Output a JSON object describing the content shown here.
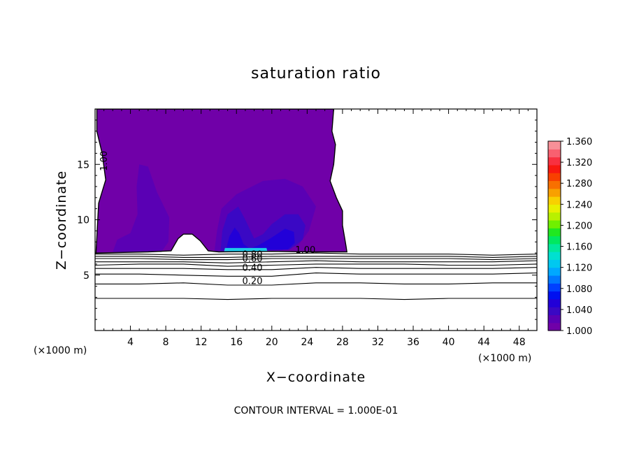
{
  "chart_data": {
    "type": "contour",
    "title": "saturation ratio",
    "xlabel": "X−coordinate",
    "ylabel": "Z−coordinate",
    "x_unit_left": "(×1000 m)",
    "x_unit_right": "(×1000 m)",
    "xlim": [
      0,
      50
    ],
    "ylim": [
      0,
      20
    ],
    "x_ticks": [
      4,
      8,
      12,
      16,
      20,
      24,
      28,
      32,
      36,
      40,
      44,
      48
    ],
    "y_ticks": [
      5,
      10,
      15
    ],
    "x_tick_labels": [
      "4",
      "8",
      "12",
      "16",
      "20",
      "24",
      "28",
      "32",
      "36",
      "40",
      "44",
      "48"
    ],
    "y_tick_labels": [
      "5",
      "10",
      "15"
    ],
    "contour_interval_text": "CONTOUR INTERVAL = 1.000E-01",
    "contour_labels": [
      {
        "text": "1.00",
        "x": 23.8,
        "z": 7.0
      },
      {
        "text": "1.00",
        "x": 0.4,
        "z": 14.4
      },
      {
        "text": "0.80",
        "x": 17.8,
        "z": 6.6
      },
      {
        "text": "0.60",
        "x": 17.8,
        "z": 6.2
      },
      {
        "text": "0.40",
        "x": 17.8,
        "z": 5.4
      },
      {
        "text": "0.20",
        "x": 17.8,
        "z": 4.2
      }
    ],
    "subsaturated_contours": [
      {
        "level": 0.1,
        "z": [
          2.9,
          2.9,
          2.9,
          2.8,
          2.9,
          2.9,
          2.9,
          2.8,
          2.9,
          2.9,
          2.9
        ]
      },
      {
        "level": 0.2,
        "z": [
          4.2,
          4.2,
          4.3,
          4.1,
          4.1,
          4.3,
          4.3,
          4.2,
          4.2,
          4.3,
          4.3
        ]
      },
      {
        "level": 0.3,
        "z": [
          5.1,
          5.1,
          5.0,
          4.9,
          4.9,
          5.2,
          5.1,
          5.1,
          5.1,
          5.1,
          5.2
        ]
      },
      {
        "level": 0.4,
        "z": [
          5.6,
          5.6,
          5.6,
          5.5,
          5.5,
          5.7,
          5.6,
          5.6,
          5.6,
          5.6,
          5.7
        ]
      },
      {
        "level": 0.5,
        "z": [
          5.9,
          6.0,
          6.0,
          5.8,
          5.9,
          6.0,
          6.0,
          6.0,
          5.9,
          5.9,
          6.0
        ]
      },
      {
        "level": 0.6,
        "z": [
          6.2,
          6.2,
          6.2,
          6.1,
          6.2,
          6.3,
          6.2,
          6.2,
          6.2,
          6.2,
          6.3
        ]
      },
      {
        "level": 0.7,
        "z": [
          6.5,
          6.5,
          6.4,
          6.4,
          6.5,
          6.5,
          6.5,
          6.5,
          6.5,
          6.4,
          6.5
        ]
      },
      {
        "level": 0.8,
        "z": [
          6.7,
          6.7,
          6.6,
          6.6,
          6.7,
          6.7,
          6.7,
          6.7,
          6.7,
          6.6,
          6.7
        ]
      },
      {
        "level": 0.9,
        "z": [
          6.9,
          6.9,
          6.8,
          6.9,
          6.9,
          7.0,
          6.9,
          6.9,
          6.9,
          6.8,
          6.9
        ]
      }
    ],
    "contour_x": [
      0,
      5,
      10,
      15,
      20,
      25,
      30,
      35,
      40,
      45,
      50
    ],
    "supersaturated_region_outline": [
      [
        0.1,
        7.0
      ],
      [
        0.4,
        11.5
      ],
      [
        1.2,
        13.6
      ],
      [
        0.8,
        16.0
      ],
      [
        0.2,
        18.0
      ],
      [
        0.2,
        20.0
      ],
      [
        27.0,
        20.0
      ],
      [
        26.8,
        18.0
      ],
      [
        27.2,
        16.8
      ],
      [
        27.0,
        15.0
      ],
      [
        26.6,
        13.5
      ],
      [
        27.3,
        12.0
      ],
      [
        28.0,
        10.8
      ],
      [
        28.0,
        9.5
      ],
      [
        28.4,
        7.6
      ],
      [
        28.5,
        7.1
      ],
      [
        25.0,
        7.1
      ],
      [
        20.0,
        7.15
      ],
      [
        14.0,
        7.1
      ],
      [
        12.8,
        7.2
      ],
      [
        11.9,
        8.1
      ],
      [
        11.0,
        8.7
      ],
      [
        10.0,
        8.7
      ],
      [
        9.4,
        8.3
      ],
      [
        8.6,
        7.2
      ],
      [
        6.0,
        7.1
      ],
      [
        0.1,
        7.0
      ]
    ],
    "supersaturated_levels": [
      {
        "level": 1.01,
        "color": "#7000a8",
        "region": [
          [
            0.1,
            7.0
          ],
          [
            0.4,
            11.5
          ],
          [
            1.2,
            13.6
          ],
          [
            0.8,
            16.0
          ],
          [
            0.2,
            18.0
          ],
          [
            0.2,
            20.0
          ],
          [
            27.0,
            20.0
          ],
          [
            26.8,
            18.0
          ],
          [
            27.2,
            16.8
          ],
          [
            27.0,
            15.0
          ],
          [
            26.6,
            13.5
          ],
          [
            27.3,
            12.0
          ],
          [
            28.0,
            10.8
          ],
          [
            28.0,
            9.5
          ],
          [
            28.4,
            7.6
          ],
          [
            28.5,
            7.1
          ],
          [
            25.0,
            7.1
          ],
          [
            20.0,
            7.15
          ],
          [
            14.0,
            7.1
          ],
          [
            12.8,
            7.2
          ],
          [
            11.9,
            8.1
          ],
          [
            11.0,
            8.7
          ],
          [
            10.0,
            8.7
          ],
          [
            9.4,
            8.3
          ],
          [
            8.6,
            7.2
          ],
          [
            6.0,
            7.1
          ],
          [
            0.1,
            7.0
          ]
        ]
      },
      {
        "level": 1.02,
        "color": "#5a00b4",
        "region": [
          [
            2.0,
            7.1
          ],
          [
            2.5,
            8.2
          ],
          [
            4.0,
            8.8
          ],
          [
            4.8,
            10.5
          ],
          [
            4.7,
            13.0
          ],
          [
            5.0,
            15.0
          ],
          [
            6.0,
            14.8
          ],
          [
            7.0,
            12.5
          ],
          [
            8.4,
            10.2
          ],
          [
            8.3,
            8.0
          ],
          [
            7.5,
            7.1
          ]
        ]
      },
      {
        "level": 1.02,
        "color": "#5a00b4",
        "region": [
          [
            13.5,
            7.1
          ],
          [
            13.8,
            9.0
          ],
          [
            14.3,
            11.0
          ],
          [
            16.0,
            12.3
          ],
          [
            19.0,
            13.5
          ],
          [
            21.5,
            13.7
          ],
          [
            23.5,
            13.0
          ],
          [
            25.0,
            11.2
          ],
          [
            24.2,
            9.0
          ],
          [
            23.0,
            7.7
          ],
          [
            21.0,
            7.2
          ]
        ]
      },
      {
        "level": 1.03,
        "color": "#3a08c4",
        "region": [
          [
            14.2,
            7.2
          ],
          [
            14.4,
            9.0
          ],
          [
            15.0,
            10.5
          ],
          [
            16.2,
            11.2
          ],
          [
            17.0,
            10.0
          ],
          [
            18.0,
            8.3
          ],
          [
            19.0,
            8.7
          ],
          [
            20.0,
            9.6
          ],
          [
            21.5,
            10.5
          ],
          [
            23.0,
            10.5
          ],
          [
            23.8,
            9.5
          ],
          [
            23.5,
            8.2
          ],
          [
            22.0,
            7.3
          ]
        ]
      },
      {
        "level": 1.04,
        "color": "#2200d8",
        "region": [
          [
            14.8,
            7.25
          ],
          [
            15.2,
            8.5
          ],
          [
            15.8,
            9.3
          ],
          [
            16.3,
            8.8
          ],
          [
            16.8,
            7.8
          ],
          [
            17.5,
            7.4
          ],
          [
            18.5,
            7.7
          ],
          [
            20.0,
            8.4
          ],
          [
            21.5,
            9.2
          ],
          [
            22.5,
            8.9
          ],
          [
            22.6,
            7.9
          ],
          [
            21.8,
            7.3
          ]
        ]
      },
      {
        "level": 1.1,
        "color": "#1ec8e8",
        "region": [
          [
            14.6,
            7.15
          ],
          [
            14.7,
            7.45
          ],
          [
            19.4,
            7.45
          ],
          [
            19.5,
            7.15
          ]
        ]
      }
    ],
    "colorbar": {
      "labels": [
        "1.360",
        "1.320",
        "1.280",
        "1.240",
        "1.200",
        "1.160",
        "1.120",
        "1.080",
        "1.040",
        "1.000"
      ],
      "min": 1.0,
      "max": 1.36,
      "colors": [
        "#7000a8",
        "#5a00b4",
        "#3a08c4",
        "#2200d8",
        "#0010f0",
        "#0040ff",
        "#0078ff",
        "#00a8ff",
        "#00c8f0",
        "#00e0d0",
        "#00e89c",
        "#00e860",
        "#20e820",
        "#70f000",
        "#b8f000",
        "#e8f000",
        "#f8d000",
        "#f8a000",
        "#f87000",
        "#f84000",
        "#f81810",
        "#f83040",
        "#f86070",
        "#f89098"
      ]
    }
  }
}
